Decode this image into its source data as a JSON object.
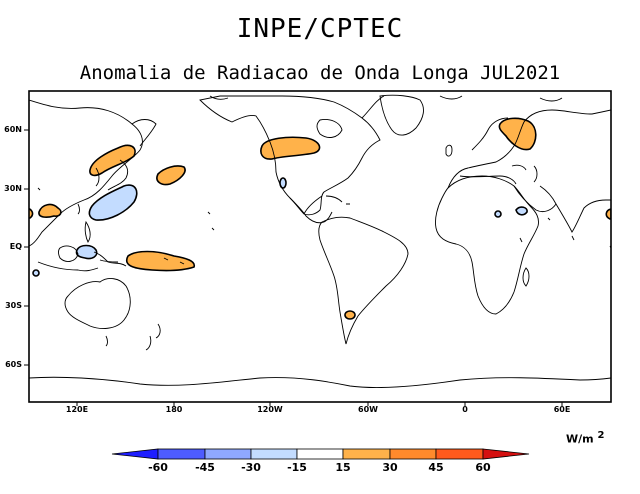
{
  "header": {
    "title": "INPE/CPTEC",
    "subtitle": "Anomalia de Radiacao de Onda Longa JUL2021"
  },
  "map": {
    "projection": "cylindrical equidistant",
    "lat_labels": [
      "60N",
      "30N",
      "EQ",
      "30S",
      "60S"
    ],
    "lon_labels": [
      "120E",
      "180",
      "120W",
      "60W",
      "0",
      "60E"
    ],
    "anomaly_regions": [
      {
        "name": "east-asia-japan",
        "sign": "positive"
      },
      {
        "name": "south-china",
        "sign": "positive"
      },
      {
        "name": "north-pacific",
        "sign": "positive"
      },
      {
        "name": "western-canada",
        "sign": "positive"
      },
      {
        "name": "scandinavia-russia",
        "sign": "positive"
      },
      {
        "name": "equatorial-pacific",
        "sign": "positive"
      },
      {
        "name": "southern-chile",
        "sign": "positive"
      },
      {
        "name": "arabian-east",
        "sign": "positive"
      },
      {
        "name": "west-edge",
        "sign": "positive"
      },
      {
        "name": "west-pacific",
        "sign": "negative"
      },
      {
        "name": "indonesia",
        "sign": "negative"
      },
      {
        "name": "mexico",
        "sign": "negative"
      },
      {
        "name": "middle-east",
        "sign": "negative"
      },
      {
        "name": "indian-ocean-west",
        "sign": "negative"
      }
    ]
  },
  "legend": {
    "units": "W/m",
    "units_exp": "2",
    "labels": [
      "-60",
      "-45",
      "-30",
      "-15",
      "15",
      "30",
      "45",
      "60"
    ],
    "colors": [
      "#1e1eff",
      "#4e5cff",
      "#8fa8ff",
      "#c3dcff",
      "#ffffff",
      "#ffb24a",
      "#ff8a2c",
      "#ff5a1c",
      "#d41010"
    ]
  }
}
